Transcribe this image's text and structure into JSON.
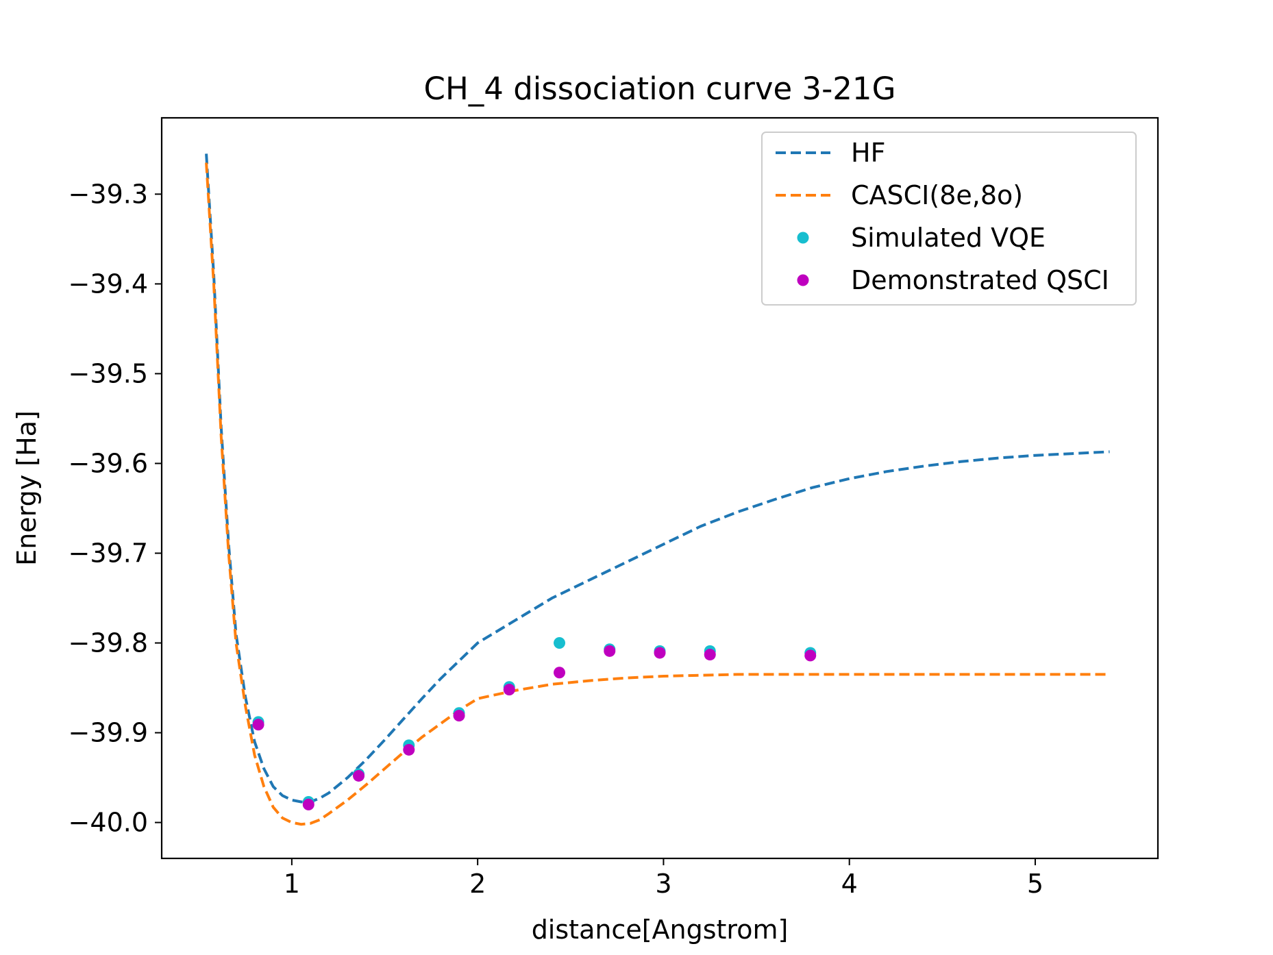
{
  "chart_data": {
    "type": "line",
    "title": "CH_4 dissociation curve 3-21G",
    "xlabel": "distance[Angstrom]",
    "ylabel": "Energy [Ha]",
    "xlim": [
      0.3,
      5.66
    ],
    "ylim": [
      -40.04,
      -39.215
    ],
    "xticks": [
      1,
      2,
      3,
      4,
      5
    ],
    "yticks": [
      -39.3,
      -39.4,
      -39.5,
      -39.6,
      -39.7,
      -39.8,
      -39.9,
      -40.0
    ],
    "xtick_labels": [
      "1",
      "2",
      "3",
      "4",
      "5"
    ],
    "ytick_labels": [
      "−39.3",
      "−39.4",
      "−39.5",
      "−39.6",
      "−39.7",
      "−39.8",
      "−39.9",
      "−40.0"
    ],
    "grid": false,
    "legend_position": "top-right",
    "series": [
      {
        "name": "HF",
        "kind": "line",
        "style": "dashed",
        "color": "#1f77b4",
        "x": [
          0.54,
          0.58,
          0.62,
          0.66,
          0.7,
          0.75,
          0.8,
          0.85,
          0.9,
          0.95,
          1.0,
          1.05,
          1.1,
          1.15,
          1.2,
          1.3,
          1.4,
          1.5,
          1.6,
          1.7,
          1.8,
          1.9,
          2.0,
          2.2,
          2.4,
          2.6,
          2.8,
          3.0,
          3.2,
          3.4,
          3.6,
          3.8,
          4.0,
          4.2,
          4.4,
          4.6,
          4.8,
          5.0,
          5.2,
          5.4
        ],
        "y": [
          -39.255,
          -39.39,
          -39.56,
          -39.69,
          -39.79,
          -39.86,
          -39.91,
          -39.94,
          -39.96,
          -39.97,
          -39.975,
          -39.977,
          -39.977,
          -39.973,
          -39.967,
          -39.95,
          -39.93,
          -39.908,
          -39.885,
          -39.862,
          -39.84,
          -39.82,
          -39.8,
          -39.775,
          -39.75,
          -39.73,
          -39.71,
          -39.69,
          -39.67,
          -39.654,
          -39.64,
          -39.627,
          -39.617,
          -39.609,
          -39.603,
          -39.598,
          -39.594,
          -39.591,
          -39.589,
          -39.587
        ]
      },
      {
        "name": "CASCI(8e,8o)",
        "kind": "line",
        "style": "dashed",
        "color": "#ff7f0e",
        "x": [
          0.54,
          0.58,
          0.62,
          0.66,
          0.7,
          0.75,
          0.8,
          0.85,
          0.9,
          0.95,
          1.0,
          1.05,
          1.1,
          1.15,
          1.2,
          1.3,
          1.4,
          1.5,
          1.6,
          1.7,
          1.8,
          1.9,
          2.0,
          2.2,
          2.4,
          2.6,
          2.8,
          3.0,
          3.2,
          3.4,
          3.6,
          3.8,
          4.0,
          4.2,
          4.4,
          4.6,
          4.8,
          5.0,
          5.2,
          5.4
        ],
        "y": [
          -39.265,
          -39.4,
          -39.57,
          -39.7,
          -39.8,
          -39.87,
          -39.925,
          -39.96,
          -39.983,
          -39.995,
          -40.0,
          -40.002,
          -40.001,
          -39.997,
          -39.99,
          -39.975,
          -39.958,
          -39.94,
          -39.922,
          -39.905,
          -39.89,
          -39.875,
          -39.862,
          -39.853,
          -39.846,
          -39.842,
          -39.839,
          -39.837,
          -39.836,
          -39.835,
          -39.835,
          -39.835,
          -39.835,
          -39.835,
          -39.835,
          -39.835,
          -39.835,
          -39.835,
          -39.835,
          -39.835
        ]
      },
      {
        "name": "Simulated VQE",
        "kind": "scatter",
        "color": "#17becf",
        "x": [
          0.82,
          1.09,
          1.36,
          1.63,
          1.9,
          2.17,
          2.44,
          2.71,
          2.98,
          3.25,
          3.79
        ],
        "y": [
          -39.888,
          -39.977,
          -39.946,
          -39.914,
          -39.878,
          -39.849,
          -39.8,
          -39.807,
          -39.809,
          -39.809,
          -39.811
        ]
      },
      {
        "name": "Demonstrated QSCI",
        "kind": "scatter",
        "color": "#bf00bf",
        "x": [
          0.82,
          1.09,
          1.36,
          1.63,
          1.9,
          2.17,
          2.44,
          2.71,
          2.98,
          3.25,
          3.79
        ],
        "y": [
          -39.891,
          -39.98,
          -39.948,
          -39.919,
          -39.881,
          -39.852,
          -39.833,
          -39.809,
          -39.811,
          -39.813,
          -39.814
        ]
      }
    ]
  }
}
